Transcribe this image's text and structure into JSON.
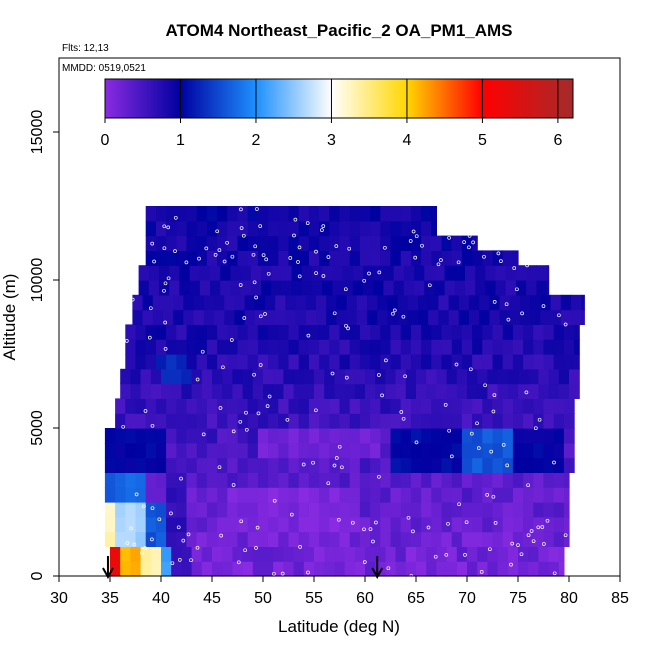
{
  "chart_data": {
    "type": "heatmap",
    "title": "ATOM4 Northeast_Pacific_2 OA_PM1_AMS",
    "flights_label": "Flts: 12,13",
    "dates_label": "MMDD: 0519,0521",
    "xlabel": "Latitude (deg N)",
    "ylabel": "Altitude (m)",
    "xlim": [
      30,
      85
    ],
    "ylim": [
      0,
      17500
    ],
    "x_ticks": [
      "30",
      "35",
      "40",
      "45",
      "50",
      "55",
      "60",
      "65",
      "70",
      "75",
      "80",
      "85"
    ],
    "y_ticks": [
      "0",
      "5000",
      "10000",
      "15000"
    ],
    "colorbar": {
      "min": 0,
      "max": 6.2,
      "ticks": [
        "0",
        "1",
        "2",
        "3",
        "4",
        "5",
        "6"
      ],
      "colors": [
        "#8a2be2",
        "#0000a0",
        "#1e90ff",
        "#ffffff",
        "#ffd700",
        "#ff0000",
        "#a52a2a"
      ]
    },
    "field": {
      "lat_step": 1,
      "alt_step": 500,
      "lat_start": 34,
      "coverage": [
        {
          "alt_from": 0,
          "alt_to": 500,
          "lat_from": 35,
          "lat_to": 79.5
        },
        {
          "alt_from": 500,
          "alt_to": 1000,
          "lat_from": 35,
          "lat_to": 79.5
        },
        {
          "alt_from": 1000,
          "alt_to": 1500,
          "lat_from": 34.5,
          "lat_to": 80
        },
        {
          "alt_from": 1500,
          "alt_to": 2000,
          "lat_from": 34.5,
          "lat_to": 80
        },
        {
          "alt_from": 2000,
          "alt_to": 3500,
          "lat_from": 34.5,
          "lat_to": 80
        },
        {
          "alt_from": 3500,
          "alt_to": 5000,
          "lat_from": 34.5,
          "lat_to": 80.5
        },
        {
          "alt_from": 5000,
          "alt_to": 6000,
          "lat_from": 35.5,
          "lat_to": 80.5
        },
        {
          "alt_from": 6000,
          "alt_to": 7000,
          "lat_from": 36,
          "lat_to": 81
        },
        {
          "alt_from": 7000,
          "alt_to": 8500,
          "lat_from": 36.5,
          "lat_to": 81
        },
        {
          "alt_from": 8500,
          "alt_to": 9500,
          "lat_from": 37.2,
          "lat_to": 81.5
        },
        {
          "alt_from": 9500,
          "alt_to": 10500,
          "lat_from": 37.8,
          "lat_to": 78
        },
        {
          "alt_from": 10500,
          "alt_to": 11000,
          "lat_from": 38.5,
          "lat_to": 75
        },
        {
          "alt_from": 11000,
          "alt_to": 11500,
          "lat_from": 38.5,
          "lat_to": 71
        },
        {
          "alt_from": 11500,
          "alt_to": 12500,
          "lat_from": 38.5,
          "lat_to": 67
        }
      ],
      "base_profile": [
        {
          "alt": 0,
          "value": 0.15
        },
        {
          "alt": 2500,
          "value": 0.3
        },
        {
          "alt": 5000,
          "value": 0.55
        },
        {
          "alt": 8000,
          "value": 0.8
        },
        {
          "alt": 12500,
          "value": 0.9
        }
      ],
      "features": [
        {
          "lat_from": 34,
          "lat_to": 36.5,
          "alt_from": 0,
          "alt_to": 1000,
          "value": 5.3
        },
        {
          "lat_from": 36.5,
          "lat_to": 38,
          "alt_from": 0,
          "alt_to": 1000,
          "value": 4.2
        },
        {
          "lat_from": 38,
          "lat_to": 40,
          "alt_from": 0,
          "alt_to": 1000,
          "value": 3.3
        },
        {
          "lat_from": 40,
          "lat_to": 41.5,
          "alt_from": 0,
          "alt_to": 1000,
          "value": 2.1
        },
        {
          "lat_from": 34,
          "lat_to": 36,
          "alt_from": 1000,
          "alt_to": 2500,
          "value": 3.3
        },
        {
          "lat_from": 36,
          "lat_to": 38.5,
          "alt_from": 1000,
          "alt_to": 2500,
          "value": 2.6
        },
        {
          "lat_from": 38.5,
          "lat_to": 41.5,
          "alt_from": 1000,
          "alt_to": 2500,
          "value": 1.6
        },
        {
          "lat_from": 34,
          "lat_to": 36.5,
          "alt_from": 2500,
          "alt_to": 3500,
          "value": 1.6
        },
        {
          "lat_from": 36.5,
          "lat_to": 39,
          "alt_from": 2500,
          "alt_to": 3500,
          "value": 1.8
        },
        {
          "lat_from": 34,
          "lat_to": 41,
          "alt_from": 3500,
          "alt_to": 5000,
          "value": 1.0
        },
        {
          "lat_from": 41,
          "lat_to": 43,
          "alt_from": 0,
          "alt_to": 3500,
          "value": 0.65
        },
        {
          "lat_from": 63,
          "lat_to": 70,
          "alt_from": 3500,
          "alt_to": 5000,
          "value": 1.05
        },
        {
          "lat_from": 70,
          "lat_to": 74.5,
          "alt_from": 3500,
          "alt_to": 5000,
          "value": 1.6
        },
        {
          "lat_from": 74.5,
          "lat_to": 80,
          "alt_from": 3500,
          "alt_to": 5000,
          "value": 1.0
        },
        {
          "lat_from": 40,
          "lat_to": 43,
          "alt_from": 6500,
          "alt_to": 7500,
          "value": 1.3
        },
        {
          "lat_from": 47,
          "lat_to": 60,
          "alt_from": 1500,
          "alt_to": 3000,
          "value": 0.1
        },
        {
          "lat_from": 50,
          "lat_to": 62,
          "alt_from": 4000,
          "alt_to": 5000,
          "value": 0.2
        }
      ]
    },
    "arrows_lat": [
      34.8,
      61.2
    ]
  }
}
